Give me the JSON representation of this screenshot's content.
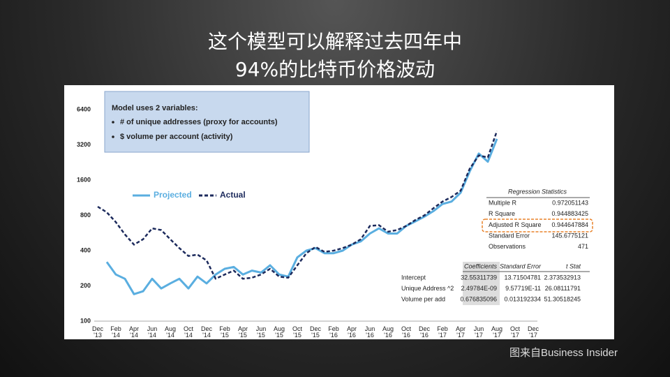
{
  "slide": {
    "title_lines": [
      "这个模型可以解释过去四年中",
      "94%的比特币价格波动"
    ],
    "source": "图来自Business Insider"
  },
  "chart_data": {
    "type": "line",
    "log_scale": true,
    "grid": false,
    "model_box": {
      "heading": "Model uses 2 variables:",
      "bullets": [
        "# of unique addresses (proxy for accounts)",
        "$ volume per account (activity)"
      ]
    },
    "categories": [
      "Dec\n'13",
      null,
      "Feb\n'14",
      null,
      "Apr\n'14",
      null,
      "Jun\n'14",
      null,
      "Aug\n'14",
      null,
      "Oct\n'14",
      null,
      "Dec\n'14",
      null,
      "Feb\n'15",
      null,
      "Apr\n'15",
      null,
      "Jun\n'15",
      null,
      "Aug\n'15",
      null,
      "Oct\n'15",
      null,
      "Dec\n'15",
      null,
      "Feb\n'16",
      null,
      "Apr\n'16",
      null,
      "Jun\n'16",
      null,
      "Aug\n'16",
      null,
      "Oct\n'16",
      null,
      "Dec\n'16",
      null,
      "Feb\n'17",
      null,
      "Apr\n'17",
      null,
      "Jun\n'17",
      null,
      "Aug\n'17",
      null,
      "Oct\n'17",
      null,
      "Dec\n'17"
    ],
    "ylim": [
      100,
      6400
    ],
    "yticks": [
      100,
      200,
      400,
      800,
      1600,
      3200,
      6400
    ],
    "series": [
      {
        "name": "Projected",
        "color": "#5aaee0",
        "line_style": "solid",
        "values": [
          null,
          320,
          250,
          230,
          170,
          180,
          230,
          190,
          210,
          230,
          190,
          240,
          210,
          250,
          280,
          290,
          250,
          270,
          260,
          300,
          250,
          240,
          350,
          400,
          420,
          380,
          380,
          400,
          450,
          480,
          560,
          620,
          560,
          560,
          650,
          710,
          780,
          870,
          1000,
          1050,
          1250,
          1900,
          2700,
          2300,
          3600,
          null,
          null,
          null,
          null
        ]
      },
      {
        "name": "Actual",
        "color": "#1c2a5c",
        "line_style": "dashed",
        "values": [
          950,
          850,
          700,
          550,
          450,
          500,
          620,
          600,
          500,
          420,
          360,
          370,
          330,
          230,
          250,
          270,
          230,
          235,
          250,
          280,
          240,
          235,
          300,
          380,
          430,
          390,
          400,
          420,
          450,
          500,
          650,
          660,
          580,
          600,
          650,
          730,
          800,
          920,
          1050,
          1150,
          1300,
          2000,
          2600,
          2500,
          4200,
          null,
          null,
          null,
          null
        ]
      }
    ],
    "regression_statistics": {
      "title": "Regression Statistics",
      "rows": [
        [
          "Multiple R",
          "0.972051143"
        ],
        [
          "R Square",
          "0.944883425"
        ],
        [
          "Adjusted R Square",
          "0.944647884"
        ],
        [
          "Standard Error",
          "145.6775121"
        ],
        [
          "Observations",
          "471"
        ]
      ]
    },
    "coefficients": {
      "header": [
        "Coefficients",
        "Standard Error",
        "t Stat"
      ],
      "rows": [
        [
          "Intercept",
          "32.55311739",
          "13.71504781",
          "2.373532913"
        ],
        [
          "Unique Address ^2",
          "2.49784E-09",
          "9.57719E-11",
          "26.08111791"
        ],
        [
          "Volume per add",
          "0.676835096",
          "0.013192334",
          "51.30518245"
        ]
      ]
    }
  }
}
